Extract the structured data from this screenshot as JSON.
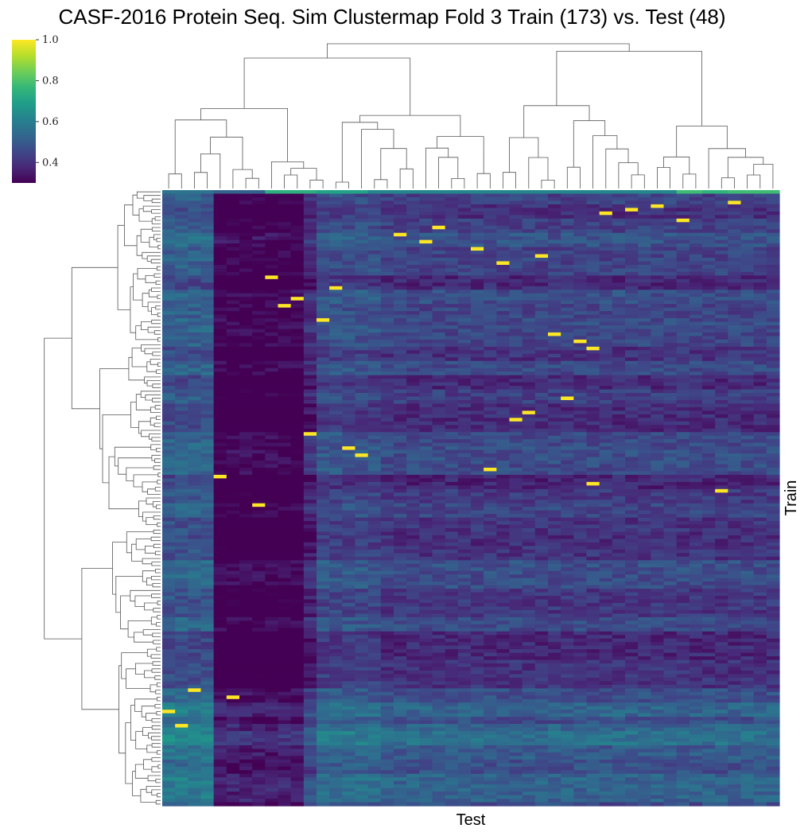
{
  "chart_data": {
    "type": "heatmap",
    "title": "CASF-2016 Protein Seq. Sim Clustermap Fold 3 Train (173) vs. Test (48)",
    "xlabel": "Test",
    "ylabel": "Train",
    "n_rows": 173,
    "n_cols": 48,
    "colormap": "viridis",
    "colorbar": {
      "vmin": 0.3,
      "vmax": 1.0,
      "ticks": [
        0.4,
        0.6,
        0.8,
        1.0
      ],
      "tick_labels": [
        "0.4",
        "0.6",
        "0.8",
        "1.0"
      ],
      "stops": [
        "#440154",
        "#482878",
        "#3e4989",
        "#31688e",
        "#26828e",
        "#1f9e89",
        "#35b779",
        "#6ece58",
        "#b5de2b",
        "#fde725"
      ]
    },
    "column_dendrogram": true,
    "row_dendrogram": true,
    "column_baseline": [
      0.57,
      0.57,
      0.57,
      0.57,
      0.52,
      0.52,
      0.52,
      0.52,
      0.52,
      0.52,
      0.52,
      0.62,
      0.7,
      0.7,
      0.7,
      0.7,
      0.7,
      0.67,
      0.67,
      0.67,
      0.67,
      0.67,
      0.67,
      0.67,
      0.67,
      0.67,
      0.67,
      0.67,
      0.67,
      0.67,
      0.67,
      0.67,
      0.67,
      0.67,
      0.67,
      0.67,
      0.67,
      0.67,
      0.67,
      0.67,
      0.67,
      0.67,
      0.67,
      0.67,
      0.67,
      0.67,
      0.67,
      0.67
    ],
    "top_row_values": [
      0.57,
      0.57,
      0.57,
      0.57,
      0.52,
      0.52,
      0.52,
      0.52,
      0.74,
      0.74,
      0.74,
      0.74,
      0.7,
      0.7,
      0.7,
      0.7,
      0.62,
      0.62,
      0.62,
      0.62,
      0.62,
      0.62,
      0.62,
      0.62,
      0.62,
      0.62,
      0.62,
      0.62,
      0.62,
      0.62,
      0.62,
      0.62,
      0.62,
      0.62,
      0.62,
      0.62,
      0.62,
      0.62,
      0.62,
      0.62,
      0.78,
      0.78,
      0.75,
      0.75,
      0.78,
      0.78,
      0.78,
      0.78
    ],
    "bright_cells": [
      {
        "row": 3,
        "col": 44
      },
      {
        "row": 4,
        "col": 38
      },
      {
        "row": 5,
        "col": 36
      },
      {
        "row": 6,
        "col": 34
      },
      {
        "row": 8,
        "col": 40
      },
      {
        "row": 10,
        "col": 21
      },
      {
        "row": 12,
        "col": 18
      },
      {
        "row": 14,
        "col": 20
      },
      {
        "row": 16,
        "col": 24
      },
      {
        "row": 18,
        "col": 29
      },
      {
        "row": 20,
        "col": 26
      },
      {
        "row": 24,
        "col": 8
      },
      {
        "row": 27,
        "col": 13
      },
      {
        "row": 30,
        "col": 10
      },
      {
        "row": 32,
        "col": 9
      },
      {
        "row": 36,
        "col": 12
      },
      {
        "row": 40,
        "col": 30
      },
      {
        "row": 42,
        "col": 32
      },
      {
        "row": 44,
        "col": 33
      },
      {
        "row": 58,
        "col": 31
      },
      {
        "row": 62,
        "col": 28
      },
      {
        "row": 64,
        "col": 27
      },
      {
        "row": 68,
        "col": 11
      },
      {
        "row": 72,
        "col": 14
      },
      {
        "row": 74,
        "col": 15
      },
      {
        "row": 78,
        "col": 25
      },
      {
        "row": 80,
        "col": 4
      },
      {
        "row": 82,
        "col": 33
      },
      {
        "row": 84,
        "col": 43
      },
      {
        "row": 88,
        "col": 7
      },
      {
        "row": 140,
        "col": 2
      },
      {
        "row": 142,
        "col": 5
      },
      {
        "row": 146,
        "col": 0
      },
      {
        "row": 150,
        "col": 1
      }
    ]
  }
}
